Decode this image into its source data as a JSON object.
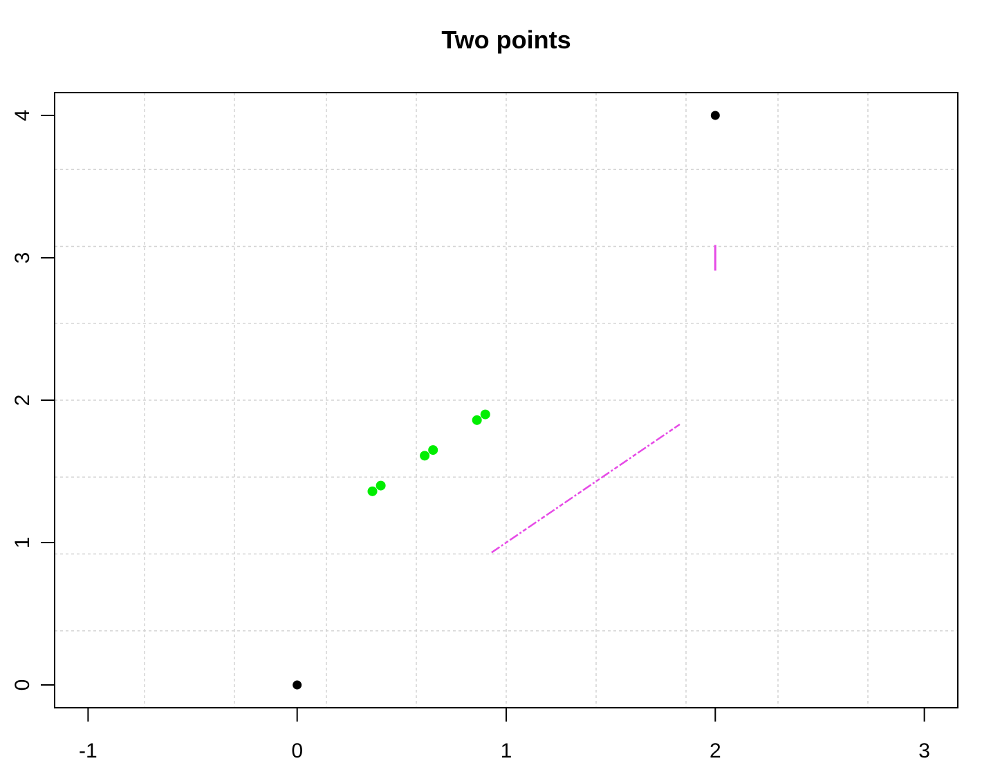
{
  "chart_data": {
    "type": "scatter",
    "title": "Two points",
    "xlabel": "",
    "ylabel": "",
    "xlim": [
      -1.16,
      3.16
    ],
    "ylim": [
      -0.16,
      4.16
    ],
    "x_ticks": [
      "-1",
      "0",
      "1",
      "2",
      "3"
    ],
    "y_ticks": [
      "0",
      "1",
      "2",
      "3",
      "4"
    ],
    "grid": true,
    "grid_x": [
      -0.73,
      -0.3,
      0.14,
      0.57,
      1.0,
      1.43,
      1.86,
      2.3,
      2.73
    ],
    "grid_y": [
      0.38,
      0.92,
      1.46,
      2.0,
      2.54,
      3.08,
      3.62
    ],
    "series": [
      {
        "color": "#000000",
        "points": [
          {
            "x": 0,
            "y": 0
          },
          {
            "x": 2,
            "y": 4
          }
        ]
      },
      {
        "color": "#00ee00",
        "points": [
          {
            "x": 0.36,
            "y": 1.36
          },
          {
            "x": 0.4,
            "y": 1.4
          },
          {
            "x": 0.61,
            "y": 1.61
          },
          {
            "x": 0.65,
            "y": 1.65
          },
          {
            "x": 0.86,
            "y": 1.86
          },
          {
            "x": 0.9,
            "y": 1.9
          }
        ]
      }
    ],
    "segments": [
      {
        "color": "#e64ae6",
        "from": {
          "x": 0.93,
          "y": 0.93
        },
        "to": {
          "x": 1.83,
          "y": 1.83
        },
        "style": "dotted"
      },
      {
        "color": "#e64ae6",
        "from": {
          "x": 2.0,
          "y": 2.91
        },
        "to": {
          "x": 2.0,
          "y": 3.09
        },
        "style": "solid"
      }
    ]
  }
}
